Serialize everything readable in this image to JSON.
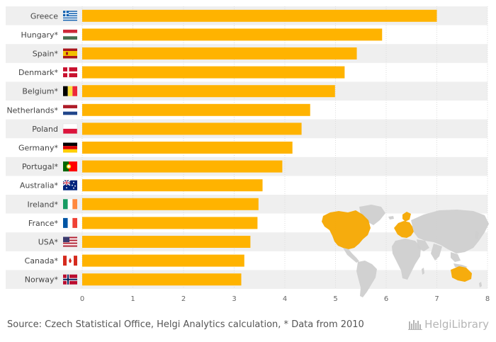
{
  "chart_data": {
    "type": "bar",
    "orientation": "horizontal",
    "categories": [
      "Greece",
      "Hungary*",
      "Spain*",
      "Denmark*",
      "Belgium*",
      "Netherlands*",
      "Poland",
      "Germany*",
      "Portugal*",
      "Australia*",
      "Ireland*",
      "France*",
      "USA*",
      "Canada*",
      "Norway*"
    ],
    "values": [
      7.0,
      5.92,
      5.42,
      5.18,
      4.99,
      4.5,
      4.33,
      4.15,
      3.95,
      3.56,
      3.48,
      3.46,
      3.32,
      3.2,
      3.14
    ],
    "xlim": [
      0,
      8
    ],
    "xticks": [
      "0",
      "1",
      "2",
      "3",
      "4",
      "5",
      "6",
      "7",
      "8"
    ],
    "bar_color": "#FFB300",
    "band_color": "#efefef",
    "highlight_color": "#F5A800",
    "map_color": "#cfcfcf",
    "grid": true,
    "flag_icons": [
      "greece-flag-icon",
      "hungary-flag-icon",
      "spain-flag-icon",
      "denmark-flag-icon",
      "belgium-flag-icon",
      "netherlands-flag-icon",
      "poland-flag-icon",
      "germany-flag-icon",
      "portugal-flag-icon",
      "australia-flag-icon",
      "ireland-flag-icon",
      "france-flag-icon",
      "usa-flag-icon",
      "canada-flag-icon",
      "norway-flag-icon"
    ]
  },
  "footer": {
    "source": "Source: Czech Statistical Office, Helgi Analytics calculation, * Data from 2010"
  },
  "brand": {
    "name": "HelgiLibrary"
  }
}
